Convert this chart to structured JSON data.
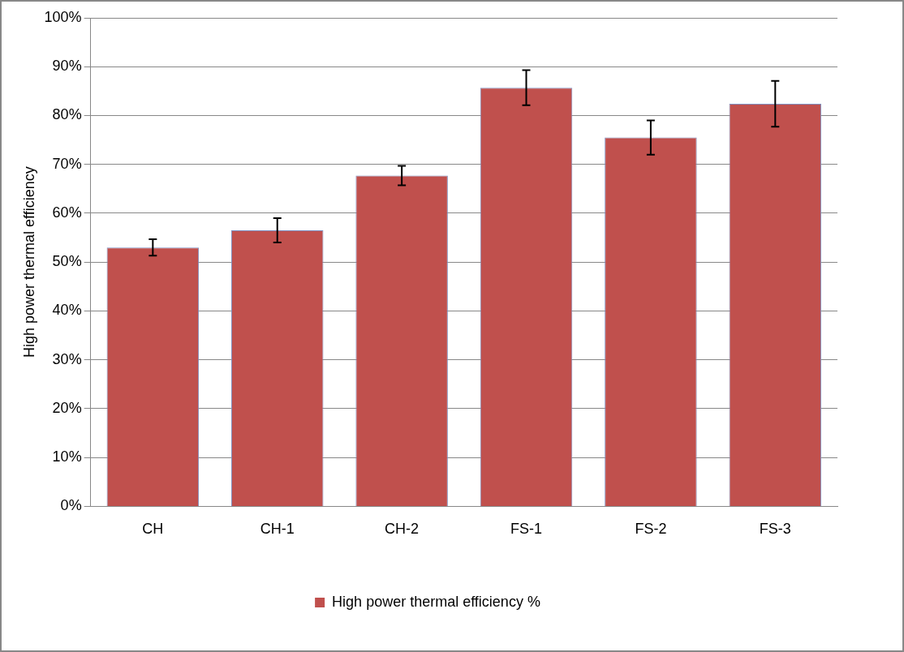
{
  "chart_data": {
    "type": "bar",
    "ylabel": "High power thermal efficiency",
    "categories": [
      "CH",
      "CH-1",
      "CH-2",
      "FS-1",
      "FS-2",
      "FS-3"
    ],
    "series": [
      {
        "name": "High power thermal efficiency %",
        "color": "#c0504d",
        "values": [
          53,
          56.5,
          67.7,
          85.7,
          75.5,
          82.4
        ],
        "errors": [
          1.7,
          2.5,
          2,
          3.6,
          3.5,
          4.7
        ]
      }
    ],
    "ylim": [
      0,
      100
    ],
    "yticks": [
      {
        "value": 0,
        "label": "0%"
      },
      {
        "value": 10,
        "label": "10%"
      },
      {
        "value": 20,
        "label": "20%"
      },
      {
        "value": 30,
        "label": "30%"
      },
      {
        "value": 40,
        "label": "40%"
      },
      {
        "value": 50,
        "label": "50%"
      },
      {
        "value": 60,
        "label": "60%"
      },
      {
        "value": 70,
        "label": "70%"
      },
      {
        "value": 80,
        "label": "80%"
      },
      {
        "value": 90,
        "label": "90%"
      },
      {
        "value": 100,
        "label": "100%"
      }
    ],
    "grid": "y",
    "legend": "bottom"
  }
}
